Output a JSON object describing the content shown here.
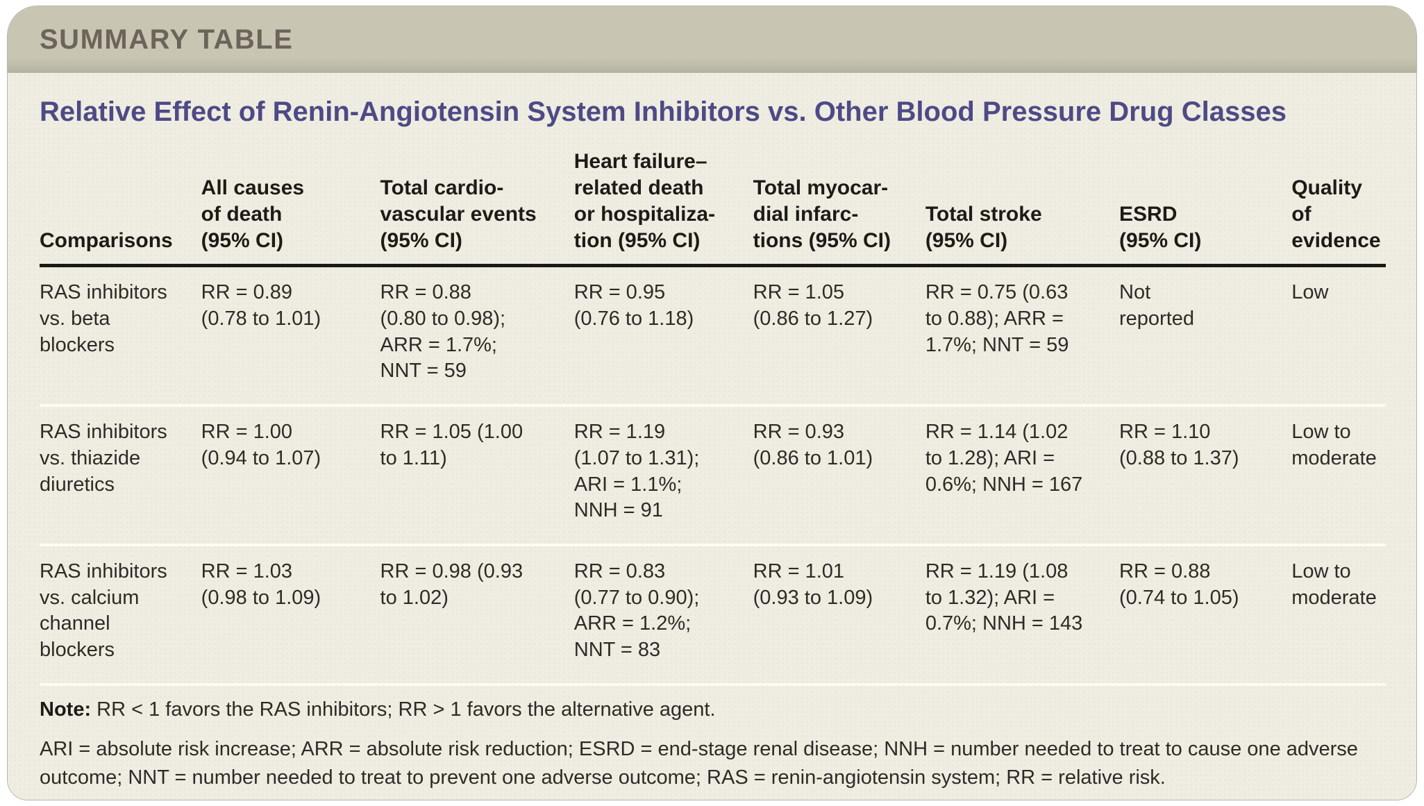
{
  "kicker": "SUMMARY TABLE",
  "title": "Relative Effect of Renin-Angiotensin System Inhibitors vs. Other Blood Pressure Drug Classes",
  "colors": {
    "header_bar": "#c8c5b3",
    "header_bar_shadow": "#b4b1a0",
    "card_bg": "#efede2",
    "card_bg_dot": "#e6e4d6",
    "card_border": "#b7b5a8",
    "kicker_text": "#6c6459",
    "title_text": "#4e4a86",
    "heading_text": "#1c1b16",
    "body_text": "#2c2b26",
    "rule": "#1a1a18",
    "row_separator": "#fcfbf4"
  },
  "table": {
    "columns": [
      "Comparisons",
      "All causes\nof death\n(95% CI)",
      "Total cardio-\nvascular events\n(95% CI)",
      "Heart failure–\nrelated death\nor hospitaliza-\ntion (95% CI)",
      "Total myocar-\ndial infarc-\ntions (95% CI)",
      "Total stroke\n(95% CI)",
      "ESRD\n(95% CI)",
      "Quality of\nevidence"
    ],
    "rows": [
      {
        "cells": [
          "RAS inhibitors\nvs. beta\nblockers",
          "RR = 0.89\n(0.78 to 1.01)",
          "RR = 0.88\n(0.80 to 0.98);\nARR = 1.7%;\nNNT = 59",
          "RR = 0.95\n(0.76 to 1.18)",
          "RR = 1.05\n(0.86 to 1.27)",
          "RR = 0.75 (0.63\nto 0.88); ARR =\n1.7%; NNT = 59",
          "Not\nreported",
          "Low"
        ]
      },
      {
        "cells": [
          "RAS inhibitors\nvs. thiazide\ndiuretics",
          "RR = 1.00\n(0.94 to 1.07)",
          "RR = 1.05 (1.00\nto 1.11)",
          "RR = 1.19\n(1.07 to 1.31);\nARI = 1.1%;\nNNH = 91",
          "RR = 0.93\n(0.86 to 1.01)",
          "RR = 1.14 (1.02\nto 1.28); ARI =\n0.6%; NNH = 167",
          "RR = 1.10\n(0.88 to 1.37)",
          "Low to\nmoderate"
        ]
      },
      {
        "cells": [
          "RAS inhibitors\nvs. calcium\nchannel\nblockers",
          "RR = 1.03\n(0.98 to 1.09)",
          "RR = 0.98 (0.93\nto 1.02)",
          "RR = 0.83\n(0.77 to 0.90);\nARR = 1.2%;\nNNT = 83",
          "RR = 1.01\n(0.93 to 1.09)",
          "RR = 1.19 (1.08\nto 1.32); ARI =\n0.7%; NNH = 143",
          "RR = 0.88\n(0.74 to 1.05)",
          "Low to\nmoderate"
        ]
      }
    ]
  },
  "footnotes": {
    "note_label": "Note:",
    "note_text": " RR < 1 favors the RAS inhibitors; RR > 1 favors the alternative agent.",
    "abbreviations": "ARI = absolute risk increase; ARR = absolute risk reduction; ESRD = end-stage renal disease; NNH = number needed to treat to cause one adverse outcome; NNT = number needed to treat to prevent one adverse outcome; RAS = renin-angiotensin system; RR = relative risk."
  }
}
